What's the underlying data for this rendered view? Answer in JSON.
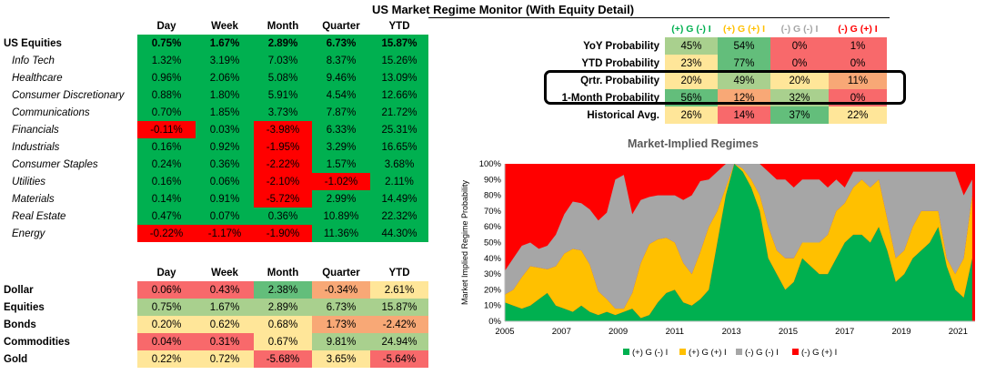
{
  "title": "US Market Regime Monitor (With Equity Detail)",
  "colors": {
    "green": "#00B050",
    "red": "#FF0000",
    "bright_green": "#00B050",
    "pale_green": "#63BE7B",
    "light_green": "#A9D08E",
    "yellow": "#FFE699",
    "orange": "#F8A876",
    "pink": "#F8696B",
    "gray": "#A6A6A6",
    "gold": "#FFC000"
  },
  "equities": {
    "headers": [
      "Day",
      "Week",
      "Month",
      "Quarter",
      "YTD"
    ],
    "rows": [
      {
        "label": "US Equities",
        "bold": true,
        "values": [
          "0.75%",
          "1.67%",
          "2.89%",
          "6.73%",
          "15.87%"
        ],
        "colors": [
          "#00B050",
          "#00B050",
          "#00B050",
          "#00B050",
          "#00B050"
        ]
      },
      {
        "label": "Info Tech",
        "values": [
          "1.32%",
          "3.19%",
          "7.03%",
          "8.37%",
          "15.26%"
        ],
        "colors": [
          "#00B050",
          "#00B050",
          "#00B050",
          "#00B050",
          "#00B050"
        ]
      },
      {
        "label": "Healthcare",
        "values": [
          "0.96%",
          "2.06%",
          "5.08%",
          "9.46%",
          "13.09%"
        ],
        "colors": [
          "#00B050",
          "#00B050",
          "#00B050",
          "#00B050",
          "#00B050"
        ]
      },
      {
        "label": "Consumer Discretionary",
        "values": [
          "0.88%",
          "1.80%",
          "5.91%",
          "4.54%",
          "12.66%"
        ],
        "colors": [
          "#00B050",
          "#00B050",
          "#00B050",
          "#00B050",
          "#00B050"
        ]
      },
      {
        "label": "Communications",
        "values": [
          "0.70%",
          "1.85%",
          "3.73%",
          "7.87%",
          "21.72%"
        ],
        "colors": [
          "#00B050",
          "#00B050",
          "#00B050",
          "#00B050",
          "#00B050"
        ]
      },
      {
        "label": "Financials",
        "values": [
          "-0.11%",
          "0.03%",
          "-3.98%",
          "6.33%",
          "25.31%"
        ],
        "colors": [
          "#FF0000",
          "#00B050",
          "#FF0000",
          "#00B050",
          "#00B050"
        ]
      },
      {
        "label": "Industrials",
        "values": [
          "0.16%",
          "0.92%",
          "-1.95%",
          "3.29%",
          "16.65%"
        ],
        "colors": [
          "#00B050",
          "#00B050",
          "#FF0000",
          "#00B050",
          "#00B050"
        ]
      },
      {
        "label": "Consumer Staples",
        "values": [
          "0.24%",
          "0.36%",
          "-2.22%",
          "1.57%",
          "3.68%"
        ],
        "colors": [
          "#00B050",
          "#00B050",
          "#FF0000",
          "#00B050",
          "#00B050"
        ]
      },
      {
        "label": "Utilities",
        "values": [
          "0.16%",
          "0.06%",
          "-2.10%",
          "-1.02%",
          "2.11%"
        ],
        "colors": [
          "#00B050",
          "#00B050",
          "#FF0000",
          "#FF0000",
          "#00B050"
        ]
      },
      {
        "label": "Materials",
        "values": [
          "0.14%",
          "0.91%",
          "-5.72%",
          "2.99%",
          "14.49%"
        ],
        "colors": [
          "#00B050",
          "#00B050",
          "#FF0000",
          "#00B050",
          "#00B050"
        ]
      },
      {
        "label": "Real Estate",
        "values": [
          "0.47%",
          "0.07%",
          "0.36%",
          "10.89%",
          "22.32%"
        ],
        "colors": [
          "#00B050",
          "#00B050",
          "#00B050",
          "#00B050",
          "#00B050"
        ]
      },
      {
        "label": "Energy",
        "values": [
          "-0.22%",
          "-1.17%",
          "-1.90%",
          "11.36%",
          "44.30%"
        ],
        "colors": [
          "#FF0000",
          "#FF0000",
          "#FF0000",
          "#00B050",
          "#00B050"
        ]
      }
    ]
  },
  "assets": {
    "headers": [
      "Day",
      "Week",
      "Month",
      "Quarter",
      "YTD"
    ],
    "rows": [
      {
        "label": "Dollar",
        "values": [
          "0.06%",
          "0.43%",
          "2.38%",
          "-0.34%",
          "2.61%"
        ],
        "colors": [
          "#F8696B",
          "#F8696B",
          "#63BE7B",
          "#F8A876",
          "#FFE699"
        ]
      },
      {
        "label": "Equities",
        "values": [
          "0.75%",
          "1.67%",
          "2.89%",
          "6.73%",
          "15.87%"
        ],
        "colors": [
          "#A9D08E",
          "#A9D08E",
          "#A9D08E",
          "#A9D08E",
          "#A9D08E"
        ]
      },
      {
        "label": "Bonds",
        "values": [
          "0.20%",
          "0.62%",
          "0.68%",
          "1.73%",
          "-2.42%"
        ],
        "colors": [
          "#FFE699",
          "#FFE699",
          "#FFE699",
          "#F8A876",
          "#F8A876"
        ]
      },
      {
        "label": "Commodities",
        "values": [
          "0.04%",
          "0.31%",
          "0.67%",
          "9.81%",
          "24.94%"
        ],
        "colors": [
          "#F8696B",
          "#F8696B",
          "#FFE699",
          "#A9D08E",
          "#A9D08E"
        ]
      },
      {
        "label": "Gold",
        "values": [
          "0.22%",
          "0.72%",
          "-5.68%",
          "3.65%",
          "-5.64%"
        ],
        "colors": [
          "#FFE699",
          "#FFE699",
          "#F8696B",
          "#FFE699",
          "#F8696B"
        ]
      }
    ]
  },
  "regimes": {
    "headers": [
      {
        "text": "(+) G (-) I",
        "color": "#00B050"
      },
      {
        "text": "(+) G (+) I",
        "color": "#FFC000"
      },
      {
        "text": "(-) G (-) I",
        "color": "#A6A6A6"
      },
      {
        "text": "(-) G (+) I",
        "color": "#FF0000"
      }
    ],
    "rows": [
      {
        "label": "YoY Probability",
        "values": [
          "45%",
          "54%",
          "0%",
          "1%"
        ],
        "colors": [
          "#A9D08E",
          "#63BE7B",
          "#F8696B",
          "#F8696B"
        ]
      },
      {
        "label": "YTD Probability",
        "values": [
          "23%",
          "77%",
          "0%",
          "0%"
        ],
        "colors": [
          "#FFE699",
          "#63BE7B",
          "#F8696B",
          "#F8696B"
        ]
      },
      {
        "label": "Qrtr. Probability",
        "values": [
          "20%",
          "49%",
          "20%",
          "11%"
        ],
        "colors": [
          "#FFE699",
          "#A9D08E",
          "#FFE699",
          "#F8A876"
        ]
      },
      {
        "label": "1-Month Probability",
        "values": [
          "56%",
          "12%",
          "32%",
          "0%"
        ],
        "colors": [
          "#63BE7B",
          "#F8A876",
          "#A9D08E",
          "#F8696B"
        ]
      },
      {
        "label": "Historical Avg.",
        "values": [
          "26%",
          "14%",
          "37%",
          "22%"
        ],
        "colors": [
          "#FFE699",
          "#F8696B",
          "#63BE7B",
          "#FFE699"
        ]
      }
    ]
  },
  "chart_data": {
    "type": "area",
    "title": "Market-Implied Regimes",
    "xlabel": "",
    "ylabel": "Market Implied Regime Probability",
    "x_ticks": [
      "2005",
      "2007",
      "2009",
      "2011",
      "2013",
      "2015",
      "2017",
      "2019",
      "2021"
    ],
    "y_ticks": [
      "0%",
      "10%",
      "20%",
      "30%",
      "40%",
      "50%",
      "60%",
      "70%",
      "80%",
      "90%",
      "100%"
    ],
    "xlim": [
      2005,
      2021.6
    ],
    "ylim": [
      0,
      100
    ],
    "stacked": true,
    "x": [
      2005.0,
      2005.3,
      2005.6,
      2005.9,
      2006.2,
      2006.5,
      2006.8,
      2007.1,
      2007.4,
      2007.7,
      2008.0,
      2008.3,
      2008.6,
      2008.9,
      2009.2,
      2009.5,
      2009.8,
      2010.1,
      2010.4,
      2010.7,
      2011.0,
      2011.3,
      2011.6,
      2011.9,
      2012.2,
      2012.5,
      2012.8,
      2013.1,
      2013.4,
      2013.7,
      2014.0,
      2014.3,
      2014.6,
      2014.9,
      2015.2,
      2015.5,
      2015.8,
      2016.1,
      2016.4,
      2016.7,
      2017.0,
      2017.3,
      2017.6,
      2017.9,
      2018.2,
      2018.5,
      2018.8,
      2019.1,
      2019.4,
      2019.7,
      2020.0,
      2020.3,
      2020.6,
      2020.9,
      2021.2,
      2021.5
    ],
    "series": [
      {
        "name": "(+) G (-) I",
        "color": "#00B050",
        "values": [
          12,
          10,
          8,
          10,
          14,
          18,
          10,
          8,
          6,
          10,
          6,
          4,
          6,
          4,
          6,
          8,
          2,
          4,
          12,
          18,
          20,
          12,
          10,
          14,
          20,
          50,
          80,
          100,
          95,
          85,
          70,
          40,
          30,
          20,
          25,
          40,
          35,
          30,
          30,
          40,
          50,
          55,
          55,
          50,
          60,
          45,
          25,
          30,
          40,
          45,
          50,
          60,
          35,
          20,
          15,
          40
        ]
      },
      {
        "name": "(+) G (+) I",
        "color": "#FFC000",
        "values": [
          5,
          10,
          20,
          25,
          20,
          15,
          25,
          35,
          40,
          35,
          30,
          15,
          8,
          4,
          2,
          10,
          35,
          45,
          40,
          35,
          30,
          25,
          20,
          30,
          40,
          20,
          5,
          0,
          2,
          5,
          10,
          20,
          15,
          20,
          15,
          10,
          15,
          20,
          25,
          30,
          25,
          30,
          35,
          35,
          30,
          20,
          15,
          15,
          20,
          25,
          20,
          10,
          5,
          10,
          25,
          40
        ]
      },
      {
        "name": "(-) G (-) I",
        "color": "#A6A6A6",
        "values": [
          15,
          20,
          20,
          15,
          12,
          15,
          20,
          25,
          30,
          30,
          35,
          45,
          55,
          82,
          85,
          50,
          40,
          30,
          28,
          27,
          30,
          40,
          50,
          45,
          30,
          25,
          15,
          0,
          3,
          10,
          20,
          35,
          45,
          50,
          45,
          40,
          40,
          40,
          30,
          20,
          10,
          10,
          5,
          10,
          5,
          30,
          55,
          50,
          35,
          25,
          25,
          25,
          55,
          65,
          40,
          10
        ]
      }
    ]
  }
}
